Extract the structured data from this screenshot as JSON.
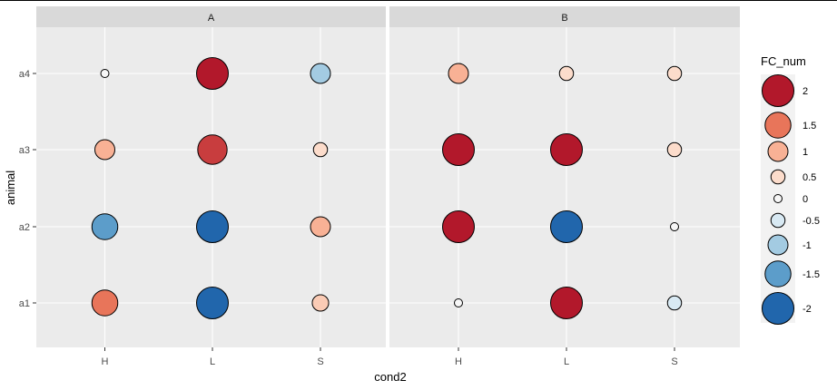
{
  "chart_data": {
    "type": "scatter",
    "facets": [
      "A",
      "B"
    ],
    "x_categories": [
      "H",
      "L",
      "S"
    ],
    "y_categories": [
      "a1",
      "a2",
      "a3",
      "a4"
    ],
    "xlabel": "cond2",
    "ylabel": "animal",
    "points": [
      {
        "facet": "A",
        "x": "H",
        "y": "a4",
        "value": 0
      },
      {
        "facet": "A",
        "x": "L",
        "y": "a4",
        "value": 2
      },
      {
        "facet": "A",
        "x": "S",
        "y": "a4",
        "value": -1
      },
      {
        "facet": "A",
        "x": "H",
        "y": "a3",
        "value": 1
      },
      {
        "facet": "A",
        "x": "L",
        "y": "a3",
        "value": 1.8
      },
      {
        "facet": "A",
        "x": "S",
        "y": "a3",
        "value": 0.5
      },
      {
        "facet": "A",
        "x": "H",
        "y": "a2",
        "value": -1.5
      },
      {
        "facet": "A",
        "x": "L",
        "y": "a2",
        "value": -2
      },
      {
        "facet": "A",
        "x": "S",
        "y": "a2",
        "value": 1
      },
      {
        "facet": "A",
        "x": "H",
        "y": "a1",
        "value": 1.5
      },
      {
        "facet": "A",
        "x": "L",
        "y": "a1",
        "value": -2
      },
      {
        "facet": "A",
        "x": "S",
        "y": "a1",
        "value": 0.7
      },
      {
        "facet": "B",
        "x": "H",
        "y": "a4",
        "value": 1
      },
      {
        "facet": "B",
        "x": "L",
        "y": "a4",
        "value": 0.5
      },
      {
        "facet": "B",
        "x": "S",
        "y": "a4",
        "value": 0.5
      },
      {
        "facet": "B",
        "x": "H",
        "y": "a3",
        "value": 2
      },
      {
        "facet": "B",
        "x": "L",
        "y": "a3",
        "value": 2
      },
      {
        "facet": "B",
        "x": "S",
        "y": "a3",
        "value": 0.5
      },
      {
        "facet": "B",
        "x": "H",
        "y": "a2",
        "value": 2
      },
      {
        "facet": "B",
        "x": "L",
        "y": "a2",
        "value": -2
      },
      {
        "facet": "B",
        "x": "S",
        "y": "a2",
        "value": 0
      },
      {
        "facet": "B",
        "x": "H",
        "y": "a1",
        "value": 0
      },
      {
        "facet": "B",
        "x": "L",
        "y": "a1",
        "value": 2
      },
      {
        "facet": "B",
        "x": "S",
        "y": "a1",
        "value": -0.5
      }
    ],
    "legend": {
      "title": "FC_num",
      "placement": "right",
      "items": [
        {
          "label": "2",
          "value": 2,
          "color": "#B2182B"
        },
        {
          "label": "1.5",
          "value": 1.5,
          "color": "#E8755A"
        },
        {
          "label": "1",
          "value": 1,
          "color": "#F8B195"
        },
        {
          "label": "0.5",
          "value": 0.5,
          "color": "#FCDCCB"
        },
        {
          "label": "0",
          "value": 0,
          "color": "#F7F7F7"
        },
        {
          "label": "-0.5",
          "value": -0.5,
          "color": "#D8E9F3"
        },
        {
          "label": "-1",
          "value": -1,
          "color": "#A3CBE2"
        },
        {
          "label": "-1.5",
          "value": -1.5,
          "color": "#5C9DCA"
        },
        {
          "label": "-2",
          "value": -2,
          "color": "#2166AC"
        }
      ]
    },
    "grid": true,
    "background_color": "#EBEBEB",
    "strip_color": "#D9D9D9"
  }
}
